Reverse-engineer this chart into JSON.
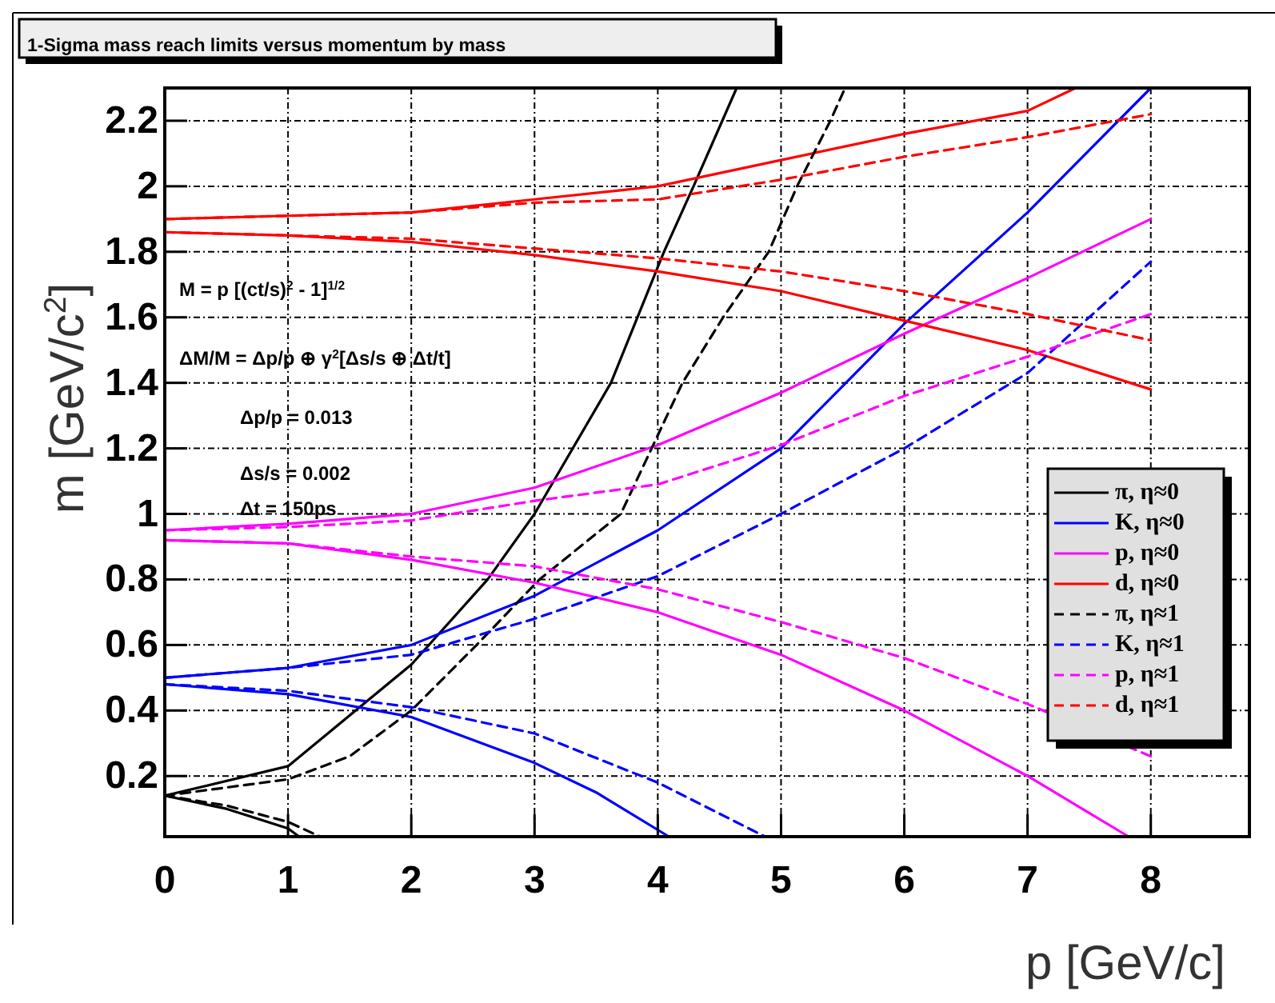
{
  "chart_data": {
    "type": "line",
    "title": "1-Sigma mass reach limits versus momentum by mass",
    "xlabel": "p [GeV/c]",
    "ylabel": "m [GeV/c$^{2}$]",
    "xlim": [
      0,
      8.8
    ],
    "xticks": [
      0,
      1,
      2,
      3,
      4,
      5,
      6,
      7,
      8
    ],
    "ylim": [
      0.015,
      2.3
    ],
    "yticks": [
      0.2,
      0.4,
      0.6,
      0.8,
      1,
      1.2,
      1.4,
      1.6,
      1.8,
      2,
      2.2
    ],
    "grid": true,
    "legend": "bottom right",
    "marker": "none",
    "annotations": [
      "M = p [(ct/s)$^{2}$ - 1]$^{1/2}$",
      "ΔM/M = Δp/p ⊕ γ$^{2}$[Δs/s ⊕ Δt/t]",
      "Δp/p = 0.013",
      "Δs/s = 0.002",
      "Δt = 150ps"
    ],
    "series": [
      {
        "name": "π, η≈0",
        "color": "#000000",
        "line_style": "solid",
        "x": [
          0,
          1,
          2,
          2.62,
          3,
          3.62,
          4.05,
          4.29,
          4.64
        ],
        "values": [
          0.14,
          0.23,
          0.54,
          0.8,
          1.0,
          1.4,
          1.8,
          2.0,
          2.3
        ]
      },
      {
        "color": "#000000",
        "line_style": "solid",
        "x": [
          0,
          0.5,
          1,
          1.09
        ],
        "values": [
          0.14,
          0.1,
          0.04,
          0.015
        ]
      },
      {
        "name": "K, η≈0",
        "color": "#0000ff",
        "line_style": "solid",
        "x": [
          0,
          1,
          2,
          3,
          4,
          5,
          6,
          7,
          8
        ],
        "values": [
          0.5,
          0.53,
          0.6,
          0.75,
          0.95,
          1.2,
          1.58,
          1.92,
          2.3
        ]
      },
      {
        "color": "#0000ff",
        "line_style": "solid",
        "x": [
          0,
          1,
          2,
          3,
          3.5,
          4.09
        ],
        "values": [
          0.48,
          0.45,
          0.38,
          0.24,
          0.15,
          0.015
        ]
      },
      {
        "name": "p, η≈0",
        "color": "#ff00ff",
        "line_style": "solid",
        "x": [
          0,
          1,
          2,
          3,
          4,
          5,
          6,
          7,
          8
        ],
        "values": [
          0.95,
          0.97,
          1.0,
          1.08,
          1.21,
          1.37,
          1.55,
          1.72,
          1.9
        ]
      },
      {
        "color": "#ff00ff",
        "line_style": "solid",
        "x": [
          0,
          1,
          2,
          3,
          4,
          5,
          6,
          7,
          7.82
        ],
        "values": [
          0.92,
          0.91,
          0.86,
          0.79,
          0.7,
          0.57,
          0.4,
          0.2,
          0.015
        ]
      },
      {
        "name": "d, η≈0",
        "color": "#ff0000",
        "line_style": "solid",
        "x": [
          0,
          1,
          2,
          3,
          4,
          5,
          6,
          7,
          7.39
        ],
        "values": [
          1.9,
          1.91,
          1.92,
          1.96,
          2.0,
          2.08,
          2.16,
          2.23,
          2.3
        ]
      },
      {
        "color": "#ff0000",
        "line_style": "solid",
        "x": [
          0,
          1,
          2,
          3,
          4,
          5,
          6,
          7,
          8
        ],
        "values": [
          1.86,
          1.85,
          1.83,
          1.79,
          1.74,
          1.68,
          1.59,
          1.5,
          1.38
        ]
      },
      {
        "name": "π, η≈1",
        "color": "#000000",
        "line_style": "dashed",
        "x": [
          0,
          1,
          1.5,
          2,
          2.53,
          3.04,
          3.7,
          3.95,
          4.2,
          4.53,
          4.9,
          5.13,
          5.4,
          5.52
        ],
        "values": [
          0.14,
          0.19,
          0.26,
          0.4,
          0.6,
          0.8,
          1.0,
          1.2,
          1.4,
          1.6,
          1.8,
          2.0,
          2.2,
          2.3
        ]
      },
      {
        "color": "#000000",
        "line_style": "dashed",
        "x": [
          0,
          0.5,
          1,
          1.26
        ],
        "values": [
          0.14,
          0.11,
          0.06,
          0.015
        ]
      },
      {
        "name": "K, η≈1",
        "color": "#0000ff",
        "line_style": "dashed",
        "x": [
          0,
          1,
          2,
          3,
          4,
          5,
          6,
          7,
          8
        ],
        "values": [
          0.5,
          0.53,
          0.57,
          0.68,
          0.81,
          1.0,
          1.2,
          1.43,
          1.77
        ]
      },
      {
        "color": "#0000ff",
        "line_style": "dashed",
        "x": [
          0,
          1,
          2,
          3,
          4,
          4.87
        ],
        "values": [
          0.48,
          0.46,
          0.41,
          0.33,
          0.18,
          0.015
        ]
      },
      {
        "name": "p, η≈1",
        "color": "#ff00ff",
        "line_style": "dashed",
        "x": [
          0,
          1,
          2,
          3,
          4,
          5,
          6,
          7,
          8
        ],
        "values": [
          0.95,
          0.96,
          0.98,
          1.04,
          1.09,
          1.21,
          1.36,
          1.48,
          1.61
        ]
      },
      {
        "color": "#ff00ff",
        "line_style": "dashed",
        "x": [
          0,
          1,
          2,
          3,
          4,
          5,
          6,
          7,
          8
        ],
        "values": [
          0.92,
          0.91,
          0.87,
          0.84,
          0.77,
          0.67,
          0.56,
          0.42,
          0.26
        ]
      },
      {
        "name": "d, η≈1",
        "color": "#ff0000",
        "line_style": "dashed",
        "x": [
          0,
          1,
          2,
          3,
          4,
          5,
          6,
          7,
          8
        ],
        "values": [
          1.9,
          1.91,
          1.92,
          1.95,
          1.96,
          2.02,
          2.09,
          2.15,
          2.22
        ]
      },
      {
        "color": "#ff0000",
        "line_style": "dashed",
        "x": [
          0,
          1,
          2,
          3,
          4,
          5,
          6,
          7,
          8
        ],
        "values": [
          1.86,
          1.85,
          1.84,
          1.81,
          1.78,
          1.74,
          1.68,
          1.61,
          1.53
        ]
      }
    ]
  }
}
